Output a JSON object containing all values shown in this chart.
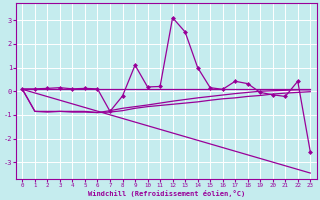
{
  "xlabel": "Windchill (Refroidissement éolien,°C)",
  "background_color": "#c5ecee",
  "grid_color": "#ffffff",
  "line_color": "#990099",
  "xlim": [
    -0.5,
    23.5
  ],
  "ylim": [
    -3.7,
    3.7
  ],
  "xticks": [
    0,
    1,
    2,
    3,
    4,
    5,
    6,
    7,
    8,
    9,
    10,
    11,
    12,
    13,
    14,
    15,
    16,
    17,
    18,
    19,
    20,
    21,
    22,
    23
  ],
  "yticks": [
    -3,
    -2,
    -1,
    0,
    1,
    2,
    3
  ],
  "series": [
    {
      "x": [
        0,
        23
      ],
      "y": [
        0.08,
        0.08
      ],
      "marker": false,
      "lw": 0.9
    },
    {
      "x": [
        0,
        1,
        2,
        3,
        4,
        5,
        6,
        7,
        8,
        9,
        10,
        11,
        12,
        13,
        14,
        15,
        16,
        17,
        18,
        19,
        20,
        21,
        22,
        23
      ],
      "y": [
        0.08,
        -0.85,
        -0.88,
        -0.85,
        -0.88,
        -0.88,
        -0.9,
        -0.88,
        -0.82,
        -0.72,
        -0.65,
        -0.6,
        -0.55,
        -0.5,
        -0.45,
        -0.38,
        -0.32,
        -0.28,
        -0.22,
        -0.18,
        -0.12,
        -0.08,
        -0.05,
        -0.02
      ],
      "marker": false,
      "lw": 0.9
    },
    {
      "x": [
        0,
        1,
        2,
        3,
        4,
        5,
        6,
        7,
        8,
        9,
        10,
        11,
        12,
        13,
        14,
        15,
        16,
        17,
        18,
        19,
        20,
        21,
        22,
        23
      ],
      "y": [
        0.08,
        -0.85,
        -0.85,
        -0.85,
        -0.85,
        -0.85,
        -0.9,
        -0.82,
        -0.72,
        -0.65,
        -0.58,
        -0.5,
        -0.42,
        -0.35,
        -0.28,
        -0.22,
        -0.16,
        -0.1,
        -0.05,
        0.0,
        0.02,
        0.04,
        0.06,
        0.06
      ],
      "marker": false,
      "lw": 0.9
    },
    {
      "x": [
        0,
        1,
        2,
        3,
        4,
        5,
        6,
        7,
        8,
        9,
        10,
        11,
        12,
        13,
        14,
        15,
        16,
        17,
        18,
        19,
        20,
        21,
        22,
        23
      ],
      "y": [
        0.1,
        0.1,
        0.12,
        0.15,
        0.1,
        0.12,
        0.1,
        -0.85,
        -0.2,
        1.1,
        0.18,
        0.2,
        3.1,
        2.5,
        1.0,
        0.15,
        0.08,
        0.42,
        0.32,
        -0.05,
        -0.15,
        -0.22,
        0.42,
        -2.55
      ],
      "marker": true,
      "lw": 0.9
    },
    {
      "x": [
        0,
        23
      ],
      "y": [
        0.08,
        -3.45
      ],
      "marker": false,
      "lw": 0.9
    }
  ]
}
